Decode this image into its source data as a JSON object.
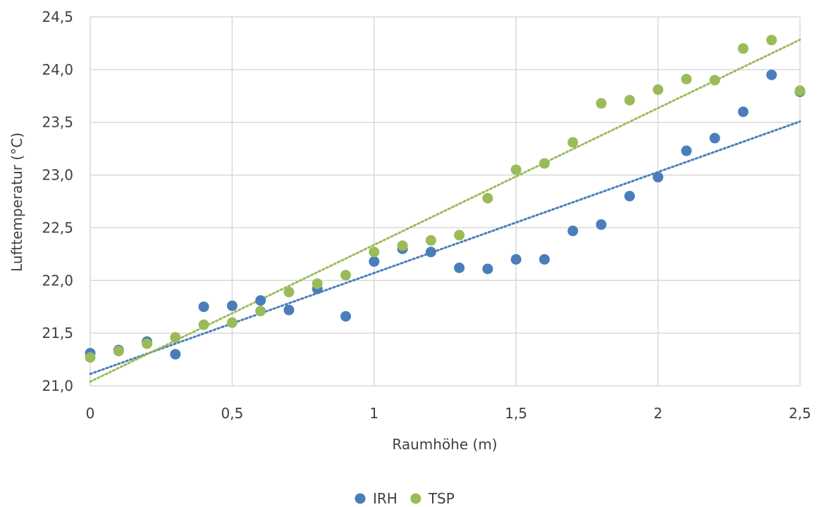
{
  "chart_data": {
    "type": "scatter",
    "title": "",
    "xlabel": "Raumhöhe (m)",
    "ylabel": "Lufttemperatur (°C)",
    "xlim": [
      0,
      2.5
    ],
    "ylim": [
      21.0,
      24.5
    ],
    "x_ticks": [
      "0",
      "0,5",
      "1",
      "1,5",
      "2",
      "2,5"
    ],
    "y_ticks": [
      "21,0",
      "21,5",
      "22,0",
      "22,5",
      "23,0",
      "23,5",
      "24,0",
      "24,5"
    ],
    "grid": true,
    "legend_position": "bottom",
    "series": [
      {
        "name": "IRH",
        "color": "#4a7ebb",
        "trendline": "linear",
        "points": [
          [
            0.0,
            21.31
          ],
          [
            0.1,
            21.34
          ],
          [
            0.2,
            21.42
          ],
          [
            0.3,
            21.3
          ],
          [
            0.4,
            21.75
          ],
          [
            0.5,
            21.76
          ],
          [
            0.6,
            21.81
          ],
          [
            0.7,
            21.72
          ],
          [
            0.8,
            21.92
          ],
          [
            0.9,
            21.66
          ],
          [
            1.0,
            22.18
          ],
          [
            1.1,
            22.3
          ],
          [
            1.2,
            22.27
          ],
          [
            1.3,
            22.12
          ],
          [
            1.4,
            22.11
          ],
          [
            1.5,
            22.2
          ],
          [
            1.6,
            22.2
          ],
          [
            1.7,
            22.47
          ],
          [
            1.8,
            22.53
          ],
          [
            1.9,
            22.8
          ],
          [
            2.0,
            22.98
          ],
          [
            2.1,
            23.23
          ],
          [
            2.2,
            23.35
          ],
          [
            2.3,
            23.6
          ],
          [
            2.4,
            23.95
          ],
          [
            2.5,
            23.79
          ]
        ]
      },
      {
        "name": "TSP",
        "color": "#9bbb59",
        "trendline": "linear",
        "points": [
          [
            0.0,
            21.27
          ],
          [
            0.1,
            21.33
          ],
          [
            0.2,
            21.4
          ],
          [
            0.3,
            21.46
          ],
          [
            0.4,
            21.58
          ],
          [
            0.5,
            21.6
          ],
          [
            0.6,
            21.71
          ],
          [
            0.7,
            21.89
          ],
          [
            0.8,
            21.97
          ],
          [
            0.9,
            22.05
          ],
          [
            1.0,
            22.27
          ],
          [
            1.1,
            22.33
          ],
          [
            1.2,
            22.38
          ],
          [
            1.3,
            22.43
          ],
          [
            1.4,
            22.78
          ],
          [
            1.5,
            23.05
          ],
          [
            1.6,
            23.11
          ],
          [
            1.7,
            23.31
          ],
          [
            1.8,
            23.68
          ],
          [
            1.9,
            23.71
          ],
          [
            2.0,
            23.81
          ],
          [
            2.1,
            23.91
          ],
          [
            2.2,
            23.9
          ],
          [
            2.3,
            24.2
          ],
          [
            2.4,
            24.28
          ],
          [
            2.5,
            23.8
          ]
        ]
      }
    ]
  }
}
